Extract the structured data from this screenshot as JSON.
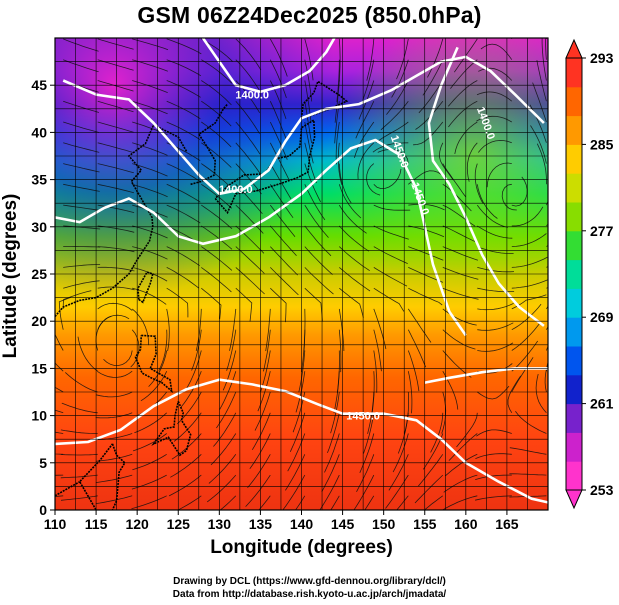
{
  "title": "GSM 06Z24Dec2025 (850.0hPa)",
  "x_axis": {
    "label": "Longitude (degrees)",
    "min": 110,
    "max": 170,
    "ticks": [
      110,
      115,
      120,
      125,
      130,
      135,
      140,
      145,
      150,
      155,
      160,
      165
    ]
  },
  "y_axis": {
    "label": "Latitude  (degrees)",
    "min": 0,
    "max": 50,
    "ticks": [
      0,
      5,
      10,
      15,
      20,
      25,
      30,
      35,
      40,
      45
    ]
  },
  "colorbar": {
    "min": 253,
    "max": 293,
    "tick_labels": [
      253,
      261,
      269,
      277,
      285,
      293
    ],
    "colors": [
      "#ff33cc",
      "#cc22cc",
      "#7722cc",
      "#1122cc",
      "#0055ee",
      "#0099ee",
      "#00ccdd",
      "#00dd99",
      "#33dd33",
      "#88dd00",
      "#ccdd00",
      "#ffcc00",
      "#ff9900",
      "#ff6600",
      "#ff3322"
    ]
  },
  "contours": [
    {
      "label": "1400.0",
      "lon": 134,
      "lat": 44
    },
    {
      "label": "1450.0",
      "lon": 152,
      "lat": 38
    },
    {
      "label": "1450.0",
      "lon": 154.5,
      "lat": 33
    },
    {
      "label": "1400.0",
      "lon": 132,
      "lat": 34
    },
    {
      "label": "1400.0",
      "lon": 162.5,
      "lat": 41
    },
    {
      "label": "1450.0",
      "lon": 147.5,
      "lat": 10
    }
  ],
  "credits": {
    "drawing": "Drawing by DCL (https://www.gfd-dennou.org/library/dcl/)",
    "data": "Data from http://database.rish.kyoto-u.ac.jp/arch/jmadata/"
  }
}
